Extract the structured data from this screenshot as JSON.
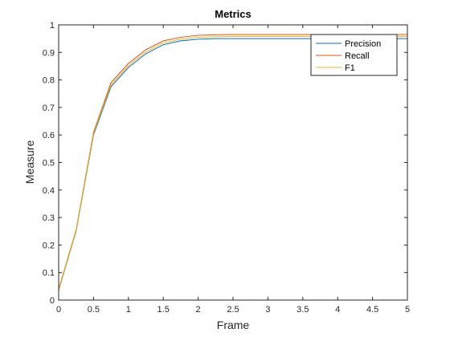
{
  "chart_data": {
    "type": "line",
    "title": "Metrics",
    "xlabel": "Frame",
    "ylabel": "Measure",
    "xlim": [
      0,
      5
    ],
    "ylim": [
      0,
      1
    ],
    "xticks": [
      0,
      0.5,
      1,
      1.5,
      2,
      2.5,
      3,
      3.5,
      4,
      4.5,
      5
    ],
    "xtick_labels": [
      "0",
      "0.5",
      "1",
      "1.5",
      "2",
      "2.5",
      "3",
      "3.5",
      "4",
      "4.5",
      "5"
    ],
    "yticks": [
      0,
      0.1,
      0.2,
      0.3,
      0.4,
      0.5,
      0.6,
      0.7,
      0.8,
      0.9,
      1
    ],
    "ytick_labels": [
      "0",
      "0.1",
      "0.2",
      "0.3",
      "0.4",
      "0.5",
      "0.6",
      "0.7",
      "0.8",
      "0.9",
      "1"
    ],
    "grid": false,
    "legend_position": "top-right",
    "x": [
      0,
      0.25,
      0.5,
      0.75,
      1,
      1.25,
      1.5,
      1.75,
      2,
      2.25,
      2.5,
      3,
      3.5,
      4,
      4.5,
      5
    ],
    "series": [
      {
        "name": "Precision",
        "color": "#0072BD",
        "values": [
          0.035,
          0.25,
          0.6,
          0.775,
          0.845,
          0.895,
          0.928,
          0.942,
          0.948,
          0.95,
          0.95,
          0.95,
          0.95,
          0.95,
          0.95,
          0.95
        ]
      },
      {
        "name": "Recall",
        "color": "#D95319",
        "values": [
          0.04,
          0.255,
          0.61,
          0.79,
          0.86,
          0.91,
          0.942,
          0.955,
          0.962,
          0.964,
          0.965,
          0.965,
          0.965,
          0.965,
          0.965,
          0.965
        ]
      },
      {
        "name": "F1",
        "color": "#EDB120",
        "values": [
          0.037,
          0.252,
          0.605,
          0.782,
          0.852,
          0.902,
          0.935,
          0.948,
          0.955,
          0.957,
          0.958,
          0.958,
          0.958,
          0.958,
          0.958,
          0.958
        ]
      }
    ]
  }
}
